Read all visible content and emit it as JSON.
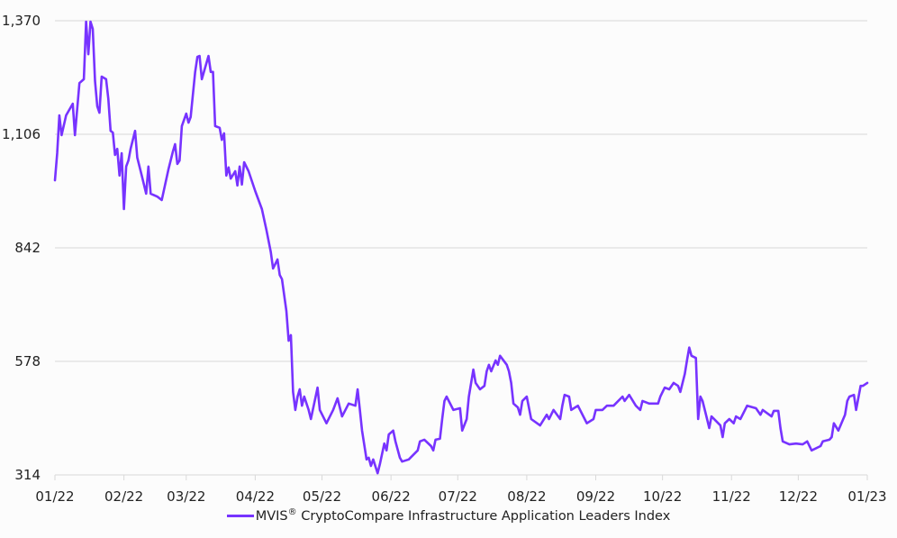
{
  "chart_data": {
    "type": "line",
    "title": "",
    "xlabel": "",
    "ylabel": "",
    "ylim": [
      314,
      1370
    ],
    "xlim": [
      "2022-01-01",
      "2023-01-01"
    ],
    "y_ticks": [
      "1,370",
      "1,106",
      "842",
      "578",
      "314"
    ],
    "y_tick_values": [
      1370,
      1106,
      842,
      578,
      314
    ],
    "x_ticks": [
      "01/22",
      "02/22",
      "03/22",
      "04/22",
      "05/22",
      "06/22",
      "07/22",
      "08/22",
      "09/22",
      "10/22",
      "11/22",
      "12/22",
      "01/23"
    ],
    "x_tick_dates": [
      "2022-01-01",
      "2022-02-01",
      "2022-03-01",
      "2022-04-01",
      "2022-05-01",
      "2022-06-01",
      "2022-07-01",
      "2022-08-01",
      "2022-09-01",
      "2022-10-01",
      "2022-11-01",
      "2022-12-01",
      "2023-01-01"
    ],
    "grid": "horizontal",
    "legend_placement": "bottom",
    "series": [
      {
        "name": "MVIS® CryptoCompare Infrastructure Application Leaders Index",
        "color": "#7733ff",
        "points": [
          [
            "2022-01-01",
            999
          ],
          [
            "2022-01-02",
            1062
          ],
          [
            "2022-01-03",
            1150
          ],
          [
            "2022-01-04",
            1104
          ],
          [
            "2022-01-06",
            1150
          ],
          [
            "2022-01-09",
            1177
          ],
          [
            "2022-01-10",
            1104
          ],
          [
            "2022-01-12",
            1225
          ],
          [
            "2022-01-14",
            1234
          ],
          [
            "2022-01-15",
            1368
          ],
          [
            "2022-01-16",
            1292
          ],
          [
            "2022-01-17",
            1368
          ],
          [
            "2022-01-18",
            1351
          ],
          [
            "2022-01-19",
            1230
          ],
          [
            "2022-01-20",
            1171
          ],
          [
            "2022-01-21",
            1156
          ],
          [
            "2022-01-22",
            1240
          ],
          [
            "2022-01-24",
            1234
          ],
          [
            "2022-01-25",
            1188
          ],
          [
            "2022-01-26",
            1114
          ],
          [
            "2022-01-27",
            1110
          ],
          [
            "2022-01-28",
            1058
          ],
          [
            "2022-01-29",
            1072
          ],
          [
            "2022-01-30",
            1010
          ],
          [
            "2022-01-31",
            1062
          ],
          [
            "2022-02-01",
            932
          ],
          [
            "2022-02-02",
            1031
          ],
          [
            "2022-02-03",
            1045
          ],
          [
            "2022-02-04",
            1072
          ],
          [
            "2022-02-06",
            1114
          ],
          [
            "2022-02-07",
            1052
          ],
          [
            "2022-02-09",
            1010
          ],
          [
            "2022-02-11",
            968
          ],
          [
            "2022-02-12",
            1031
          ],
          [
            "2022-02-13",
            968
          ],
          [
            "2022-02-16",
            961
          ],
          [
            "2022-02-18",
            953
          ],
          [
            "2022-02-21",
            1024
          ],
          [
            "2022-02-23",
            1066
          ],
          [
            "2022-02-24",
            1083
          ],
          [
            "2022-02-25",
            1037
          ],
          [
            "2022-02-26",
            1045
          ],
          [
            "2022-02-27",
            1125
          ],
          [
            "2022-03-01",
            1154
          ],
          [
            "2022-03-02",
            1133
          ],
          [
            "2022-03-03",
            1146
          ],
          [
            "2022-03-05",
            1251
          ],
          [
            "2022-03-06",
            1286
          ],
          [
            "2022-03-07",
            1288
          ],
          [
            "2022-03-08",
            1234
          ],
          [
            "2022-03-11",
            1288
          ],
          [
            "2022-03-12",
            1251
          ],
          [
            "2022-03-13",
            1251
          ],
          [
            "2022-03-14",
            1125
          ],
          [
            "2022-03-16",
            1121
          ],
          [
            "2022-03-17",
            1093
          ],
          [
            "2022-03-18",
            1108
          ],
          [
            "2022-03-19",
            1010
          ],
          [
            "2022-03-20",
            1029
          ],
          [
            "2022-03-21",
            1003
          ],
          [
            "2022-03-23",
            1020
          ],
          [
            "2022-03-24",
            987
          ],
          [
            "2022-03-25",
            1031
          ],
          [
            "2022-03-26",
            989
          ],
          [
            "2022-03-27",
            1041
          ],
          [
            "2022-03-29",
            1020
          ],
          [
            "2022-04-01",
            974
          ],
          [
            "2022-04-04",
            932
          ],
          [
            "2022-04-06",
            884
          ],
          [
            "2022-04-08",
            832
          ],
          [
            "2022-04-09",
            794
          ],
          [
            "2022-04-11",
            815
          ],
          [
            "2022-04-12",
            779
          ],
          [
            "2022-04-13",
            769
          ],
          [
            "2022-04-15",
            695
          ],
          [
            "2022-04-16",
            626
          ],
          [
            "2022-04-17",
            639
          ],
          [
            "2022-04-18",
            507
          ],
          [
            "2022-04-19",
            465
          ],
          [
            "2022-04-20",
            496
          ],
          [
            "2022-04-21",
            513
          ],
          [
            "2022-04-22",
            475
          ],
          [
            "2022-04-23",
            496
          ],
          [
            "2022-04-25",
            465
          ],
          [
            "2022-04-26",
            444
          ],
          [
            "2022-04-29",
            517
          ],
          [
            "2022-04-30",
            465
          ],
          [
            "2022-05-03",
            434
          ],
          [
            "2022-05-06",
            465
          ],
          [
            "2022-05-08",
            492
          ],
          [
            "2022-05-10",
            450
          ],
          [
            "2022-05-13",
            480
          ],
          [
            "2022-05-16",
            475
          ],
          [
            "2022-05-17",
            513
          ],
          [
            "2022-05-18",
            465
          ],
          [
            "2022-05-19",
            417
          ],
          [
            "2022-05-21",
            350
          ],
          [
            "2022-05-22",
            354
          ],
          [
            "2022-05-23",
            335
          ],
          [
            "2022-05-24",
            350
          ],
          [
            "2022-05-26",
            318
          ],
          [
            "2022-05-27",
            339
          ],
          [
            "2022-05-29",
            387
          ],
          [
            "2022-05-30",
            371
          ],
          [
            "2022-05-31",
            408
          ],
          [
            "2022-06-02",
            417
          ],
          [
            "2022-06-03",
            392
          ],
          [
            "2022-06-05",
            354
          ],
          [
            "2022-06-06",
            345
          ],
          [
            "2022-06-09",
            350
          ],
          [
            "2022-06-13",
            371
          ],
          [
            "2022-06-14",
            392
          ],
          [
            "2022-06-16",
            396
          ],
          [
            "2022-06-19",
            381
          ],
          [
            "2022-06-20",
            371
          ],
          [
            "2022-06-21",
            396
          ],
          [
            "2022-06-23",
            398
          ],
          [
            "2022-06-24",
            444
          ],
          [
            "2022-06-25",
            486
          ],
          [
            "2022-06-26",
            496
          ],
          [
            "2022-06-29",
            465
          ],
          [
            "2022-07-02",
            469
          ],
          [
            "2022-07-03",
            417
          ],
          [
            "2022-07-05",
            444
          ],
          [
            "2022-07-06",
            496
          ],
          [
            "2022-07-08",
            559
          ],
          [
            "2022-07-09",
            528
          ],
          [
            "2022-07-11",
            513
          ],
          [
            "2022-07-13",
            521
          ],
          [
            "2022-07-14",
            555
          ],
          [
            "2022-07-15",
            570
          ],
          [
            "2022-07-16",
            555
          ],
          [
            "2022-07-18",
            580
          ],
          [
            "2022-07-19",
            570
          ],
          [
            "2022-07-20",
            591
          ],
          [
            "2022-07-23",
            570
          ],
          [
            "2022-07-24",
            555
          ],
          [
            "2022-07-25",
            528
          ],
          [
            "2022-07-26",
            480
          ],
          [
            "2022-07-28",
            471
          ],
          [
            "2022-07-29",
            454
          ],
          [
            "2022-07-30",
            486
          ],
          [
            "2022-08-01",
            496
          ],
          [
            "2022-08-03",
            444
          ],
          [
            "2022-08-07",
            429
          ],
          [
            "2022-08-10",
            454
          ],
          [
            "2022-08-11",
            444
          ],
          [
            "2022-08-13",
            465
          ],
          [
            "2022-08-16",
            444
          ],
          [
            "2022-08-17",
            475
          ],
          [
            "2022-08-18",
            500
          ],
          [
            "2022-08-20",
            496
          ],
          [
            "2022-08-21",
            465
          ],
          [
            "2022-08-24",
            475
          ],
          [
            "2022-08-27",
            444
          ],
          [
            "2022-08-28",
            434
          ],
          [
            "2022-08-31",
            444
          ],
          [
            "2022-09-01",
            465
          ],
          [
            "2022-09-04",
            465
          ],
          [
            "2022-09-06",
            475
          ],
          [
            "2022-09-09",
            475
          ],
          [
            "2022-09-13",
            496
          ],
          [
            "2022-09-14",
            486
          ],
          [
            "2022-09-16",
            500
          ],
          [
            "2022-09-19",
            475
          ],
          [
            "2022-09-21",
            465
          ],
          [
            "2022-09-22",
            486
          ],
          [
            "2022-09-25",
            480
          ],
          [
            "2022-09-29",
            480
          ],
          [
            "2022-09-30",
            496
          ],
          [
            "2022-10-02",
            517
          ],
          [
            "2022-10-04",
            513
          ],
          [
            "2022-10-06",
            528
          ],
          [
            "2022-10-08",
            521
          ],
          [
            "2022-10-09",
            507
          ],
          [
            "2022-10-11",
            549
          ],
          [
            "2022-10-12",
            580
          ],
          [
            "2022-10-13",
            610
          ],
          [
            "2022-10-14",
            591
          ],
          [
            "2022-10-16",
            586
          ],
          [
            "2022-10-17",
            444
          ],
          [
            "2022-10-18",
            496
          ],
          [
            "2022-10-19",
            486
          ],
          [
            "2022-10-21",
            444
          ],
          [
            "2022-10-22",
            423
          ],
          [
            "2022-10-23",
            450
          ],
          [
            "2022-10-27",
            429
          ],
          [
            "2022-10-28",
            402
          ],
          [
            "2022-10-29",
            434
          ],
          [
            "2022-10-31",
            444
          ],
          [
            "2022-11-02",
            434
          ],
          [
            "2022-11-03",
            450
          ],
          [
            "2022-11-05",
            444
          ],
          [
            "2022-11-08",
            475
          ],
          [
            "2022-11-12",
            469
          ],
          [
            "2022-11-14",
            454
          ],
          [
            "2022-11-15",
            465
          ],
          [
            "2022-11-19",
            450
          ],
          [
            "2022-11-20",
            463
          ],
          [
            "2022-11-22",
            463
          ],
          [
            "2022-11-23",
            423
          ],
          [
            "2022-11-24",
            392
          ],
          [
            "2022-11-27",
            385
          ],
          [
            "2022-11-30",
            387
          ],
          [
            "2022-12-03",
            385
          ],
          [
            "2022-12-05",
            392
          ],
          [
            "2022-12-07",
            371
          ],
          [
            "2022-12-11",
            381
          ],
          [
            "2022-12-12",
            392
          ],
          [
            "2022-12-15",
            396
          ],
          [
            "2022-12-16",
            402
          ],
          [
            "2022-12-17",
            434
          ],
          [
            "2022-12-19",
            417
          ],
          [
            "2022-12-22",
            454
          ],
          [
            "2022-12-23",
            486
          ],
          [
            "2022-12-24",
            496
          ],
          [
            "2022-12-26",
            500
          ],
          [
            "2022-12-27",
            465
          ],
          [
            "2022-12-29",
            521
          ],
          [
            "2022-12-30",
            521
          ],
          [
            "2023-01-01",
            528
          ]
        ]
      }
    ]
  },
  "legend": {
    "label_main": "MVIS",
    "label_mark": "®",
    "label_rest": " CryptoCompare Infrastructure Application Leaders Index"
  }
}
